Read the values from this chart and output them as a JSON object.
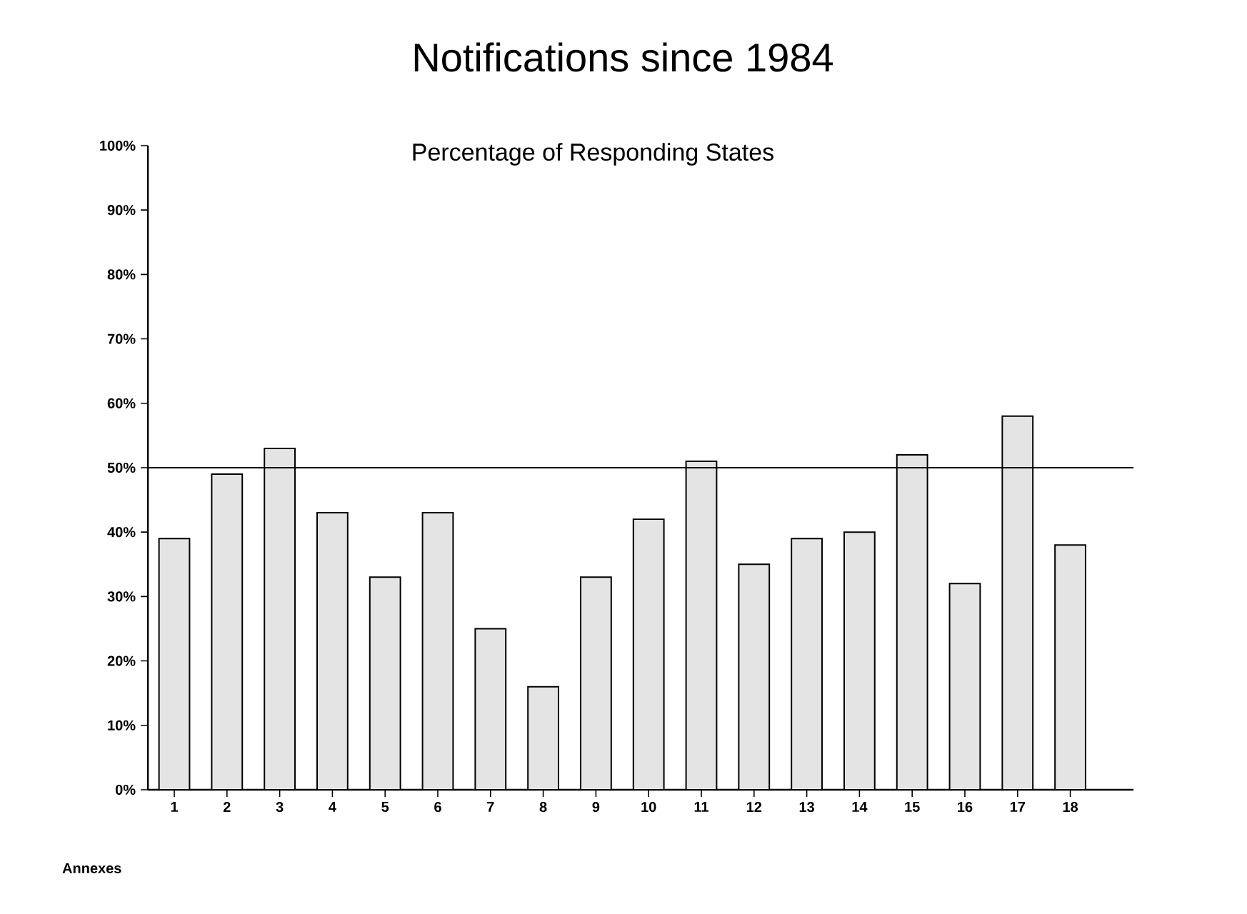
{
  "chart_data": {
    "type": "bar",
    "title": "Notifications since 1984",
    "subtitle": "Percentage of Responding States",
    "xlabel": "Annexes",
    "categories": [
      "1",
      "2",
      "3",
      "4",
      "5",
      "6",
      "7",
      "8",
      "9",
      "10",
      "11",
      "12",
      "13",
      "14",
      "15",
      "16",
      "17",
      "18"
    ],
    "values": [
      39,
      49,
      53,
      43,
      33,
      43,
      25,
      16,
      33,
      42,
      51,
      35,
      39,
      40,
      52,
      32,
      58,
      38
    ],
    "color": "#e4e4e4",
    "ylim": [
      0,
      100
    ],
    "yticks": [
      {
        "value": 0,
        "label": "0%"
      },
      {
        "value": 10,
        "label": "10%"
      },
      {
        "value": 20,
        "label": "20%"
      },
      {
        "value": 30,
        "label": "30%"
      },
      {
        "value": 40,
        "label": "40%"
      },
      {
        "value": 50,
        "label": "50%"
      },
      {
        "value": 60,
        "label": "60%"
      },
      {
        "value": 70,
        "label": "70%"
      },
      {
        "value": 80,
        "label": "80%"
      },
      {
        "value": 90,
        "label": "90%"
      },
      {
        "value": 100,
        "label": "100%"
      }
    ],
    "ref_lines": [
      {
        "axis": "y",
        "value": 50
      }
    ],
    "marker": "none"
  }
}
